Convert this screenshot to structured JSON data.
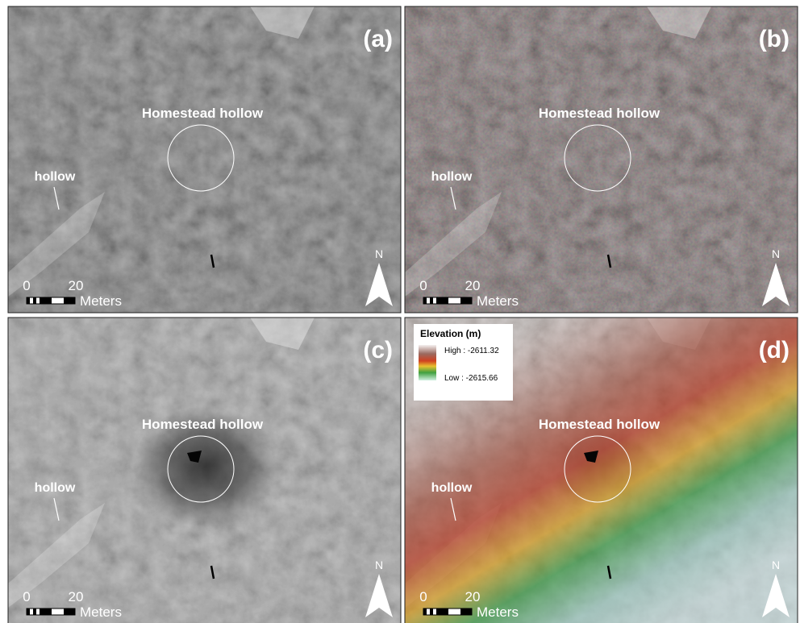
{
  "panels": [
    {
      "label": "(a)",
      "feature": "Homestead hollow",
      "hollow": "hollow",
      "scale": {
        "start": "0",
        "end": "20",
        "unit": "Meters"
      },
      "north": "N"
    },
    {
      "label": "(b)",
      "feature": "Homestead hollow",
      "hollow": "hollow",
      "scale": {
        "start": "0",
        "end": "20",
        "unit": "Meters"
      },
      "north": "N"
    },
    {
      "label": "(c)",
      "feature": "Homestead hollow",
      "hollow": "hollow",
      "scale": {
        "start": "0",
        "end": "20",
        "unit": "Meters"
      },
      "north": "N"
    },
    {
      "label": "(d)",
      "feature": "Homestead hollow",
      "hollow": "hollow",
      "scale": {
        "start": "0",
        "end": "20",
        "unit": "Meters"
      },
      "north": "N"
    }
  ],
  "legend": {
    "title": "Elevation (m)",
    "high": "High : -2611.32",
    "low": "Low : -2615.66"
  }
}
